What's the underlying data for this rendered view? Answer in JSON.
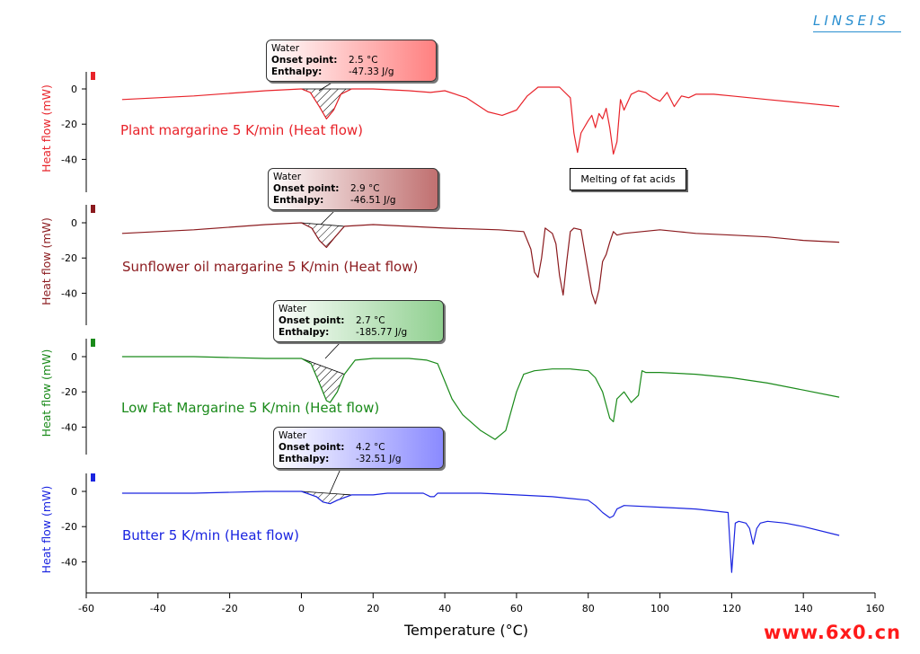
{
  "brand": "LINSEIS",
  "watermark": "www.6x0.cn",
  "note": "Melting of fat  acids",
  "chart_data": {
    "type": "line",
    "xlabel": "Temperature (°C)",
    "xlim": [
      -60,
      160
    ],
    "xticks": [
      -60,
      -40,
      -20,
      0,
      20,
      40,
      60,
      80,
      100,
      120,
      140,
      160
    ],
    "ylabel": "Heat flow (mW)",
    "yticks": [
      0,
      -20,
      -40
    ],
    "panels": [
      {
        "name": "Plant margarine 5 K/min  (Heat flow)",
        "color": "#e8232a",
        "callout": {
          "title": "Water",
          "onset_label": "Onset point:",
          "onset": "2.5 °C",
          "enthalpy_label": "Enthalpy:",
          "enthalpy": "-47.33 J/g",
          "fill": "#ff8080"
        },
        "x": [
          -50,
          -30,
          -10,
          0,
          2.5,
          5,
          7,
          9,
          11,
          14,
          20,
          30,
          36,
          40,
          46,
          52,
          56,
          60,
          63,
          66,
          69,
          72,
          75,
          76,
          77,
          78,
          80,
          81,
          82,
          83,
          84,
          85,
          86,
          87,
          88,
          89,
          90,
          92,
          94,
          96,
          98,
          100,
          102,
          104,
          106,
          108,
          110,
          115,
          120,
          130,
          140,
          150
        ],
        "y": [
          -6,
          -4,
          -1,
          0,
          -2,
          -10,
          -17,
          -12,
          -3,
          0,
          0,
          -1,
          -2,
          -1,
          -5,
          -13,
          -15,
          -12,
          -4,
          1,
          1,
          1,
          -5,
          -25,
          -36,
          -25,
          -18,
          -15,
          -22,
          -14,
          -17,
          -11,
          -22,
          -37,
          -30,
          -6,
          -12,
          -3,
          -1,
          -2,
          -5,
          -7,
          -2,
          -10,
          -4,
          -5,
          -3,
          -3,
          -4,
          -6,
          -8,
          -10
        ]
      },
      {
        "name": "Sunflower oil margarine 5 K/min  (Heat flow)",
        "color": "#8b1a1e",
        "callout": {
          "title": "Water",
          "onset_label": "Onset point:",
          "onset": "2.9 °C",
          "enthalpy_label": "Enthalpy:",
          "enthalpy": "-46.51 J/g",
          "fill": "#c07070"
        },
        "x": [
          -50,
          -30,
          -10,
          0,
          2.9,
          5,
          7,
          9,
          12,
          20,
          40,
          55,
          62,
          64,
          65,
          66,
          67,
          68,
          70,
          71,
          72,
          73,
          74,
          75,
          76,
          78,
          80,
          81,
          82,
          83,
          84,
          85,
          86,
          87,
          88,
          90,
          95,
          100,
          105,
          110,
          120,
          130,
          140,
          150
        ],
        "y": [
          -6,
          -4,
          -1,
          0,
          -3,
          -10,
          -14,
          -9,
          -2,
          -1,
          -3,
          -4,
          -5,
          -15,
          -28,
          -31,
          -20,
          -3,
          -6,
          -12,
          -30,
          -41,
          -22,
          -5,
          -3,
          -4,
          -28,
          -40,
          -46,
          -38,
          -22,
          -18,
          -11,
          -5,
          -7,
          -6,
          -5,
          -4,
          -5,
          -6,
          -7,
          -8,
          -10,
          -11
        ]
      },
      {
        "name": "Low Fat Margarine 5 K/min  (Heat flow)",
        "color": "#1a8a1a",
        "callout": {
          "title": "Water",
          "onset_label": "Onset point:",
          "onset": "2.7 °C",
          "enthalpy_label": "Enthalpy:",
          "enthalpy": "-185.77 J/g",
          "fill": "#90d090"
        },
        "x": [
          -50,
          -30,
          -10,
          0,
          2.7,
          5,
          7,
          8,
          10,
          12,
          15,
          20,
          30,
          35,
          38,
          40,
          42,
          45,
          50,
          54,
          57,
          60,
          62,
          65,
          70,
          75,
          80,
          82,
          84,
          86,
          87,
          88,
          90,
          92,
          94,
          95,
          96,
          100,
          110,
          120,
          130,
          140,
          150
        ],
        "y": [
          0,
          0,
          -1,
          -1,
          -4,
          -15,
          -25,
          -26,
          -20,
          -10,
          -2,
          -1,
          -1,
          -2,
          -4,
          -14,
          -24,
          -33,
          -42,
          -47,
          -42,
          -20,
          -10,
          -8,
          -7,
          -7,
          -8,
          -12,
          -20,
          -35,
          -37,
          -24,
          -20,
          -26,
          -22,
          -8,
          -9,
          -9,
          -10,
          -12,
          -15,
          -19,
          -23
        ]
      },
      {
        "name": "Butter 5 K/min  (Heat flow)",
        "color": "#1a24e0",
        "callout": {
          "title": "Water",
          "onset_label": "Onset point:",
          "onset": "4.2 °C",
          "enthalpy_label": "Enthalpy:",
          "enthalpy": "-32.51 J/g",
          "fill": "#8a8aff"
        },
        "x": [
          -50,
          -30,
          -10,
          0,
          4.2,
          6,
          8,
          10,
          14,
          20,
          24,
          28,
          34,
          36,
          37,
          38,
          40,
          50,
          60,
          70,
          80,
          82,
          84,
          86,
          87,
          88,
          90,
          100,
          110,
          119,
          120,
          121,
          122,
          124,
          125,
          126,
          127,
          128,
          130,
          135,
          140,
          150
        ],
        "y": [
          -1,
          -1,
          0,
          0,
          -3,
          -6,
          -7,
          -5,
          -2,
          -2,
          -1,
          -1,
          -1,
          -3,
          -3,
          -1,
          -1,
          -1,
          -2,
          -3,
          -5,
          -8,
          -12,
          -15,
          -14,
          -10,
          -8,
          -9,
          -10,
          -12,
          -46,
          -18,
          -17,
          -18,
          -21,
          -30,
          -21,
          -18,
          -17,
          -18,
          -20,
          -25
        ]
      }
    ]
  }
}
